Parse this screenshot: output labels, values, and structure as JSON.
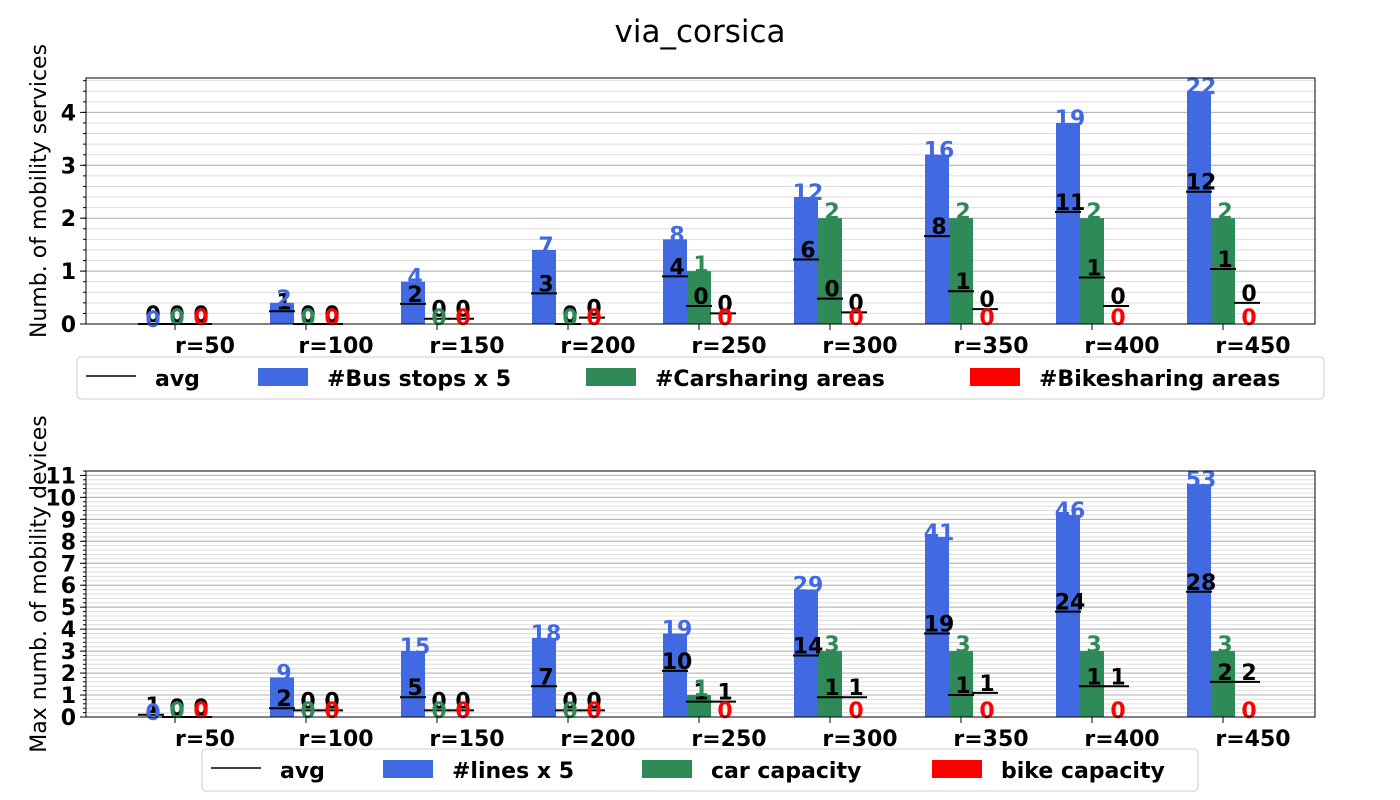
{
  "figure_title": "via_corsica",
  "colors": {
    "bus": "#4169E1",
    "car": "#2E8B57",
    "bike": "#FF0000",
    "avg": "#000000",
    "grid_major": "#b0b0b0",
    "grid_minor": "#dddddd"
  },
  "chart_data": [
    {
      "type": "bar",
      "ylabel": "Numb. of mobility services",
      "categories": [
        "r=50",
        "r=100",
        "r=150",
        "r=200",
        "r=250",
        "r=300",
        "r=350",
        "r=400",
        "r=450"
      ],
      "ylim": [
        0,
        4.65
      ],
      "yticks": [
        0,
        1,
        2,
        3,
        4
      ],
      "minor_step": 0.2,
      "grid": true,
      "legend_placement": "below",
      "legend": [
        "avg",
        "#Bus stops x 5",
        "#Carsharing areas",
        "#Bikesharing areas"
      ],
      "series": [
        {
          "name": "#Bus stops x 5",
          "color_key": "bus",
          "values": [
            0,
            0.4,
            0.8,
            1.4,
            1.6,
            2.4,
            3.2,
            3.8,
            4.4
          ],
          "labels": [
            "0",
            "2",
            "4",
            "7",
            "8",
            "12",
            "16",
            "19",
            "22"
          ]
        },
        {
          "name": "#Carsharing areas",
          "color_key": "car",
          "values": [
            0,
            0,
            0,
            0,
            1,
            2,
            2,
            2,
            2
          ],
          "labels": [
            "0",
            "0",
            "0",
            "0",
            "1",
            "2",
            "2",
            "2",
            "2"
          ]
        },
        {
          "name": "#Bikesharing areas",
          "color_key": "bike",
          "values": [
            0,
            0,
            0,
            0,
            0,
            0,
            0,
            0,
            0
          ],
          "labels": [
            "0",
            "0",
            "0",
            "0",
            "0",
            "0",
            "0",
            "0",
            "0"
          ]
        }
      ],
      "avg": [
        {
          "values": [
            0,
            0.24,
            0.38,
            0.58,
            0.9,
            1.22,
            1.66,
            2.12,
            2.5
          ],
          "labels": [
            "0",
            "1",
            "2",
            "3",
            "4",
            "6",
            "8",
            "11",
            "12"
          ]
        },
        {
          "values": [
            0,
            0,
            0.1,
            0,
            0.34,
            0.48,
            0.62,
            0.88,
            1.04
          ],
          "labels": [
            "0",
            "0",
            "0",
            "0",
            "0",
            "0",
            "1",
            "1",
            "1"
          ]
        },
        {
          "values": [
            0,
            0,
            0.1,
            0.12,
            0.2,
            0.22,
            0.28,
            0.34,
            0.4
          ],
          "labels": [
            "0",
            "0",
            "0",
            "0",
            "0",
            "0",
            "0",
            "0",
            "0"
          ]
        }
      ]
    },
    {
      "type": "bar",
      "ylabel": "Max numb. of mobility devices",
      "categories": [
        "r=50",
        "r=100",
        "r=150",
        "r=200",
        "r=250",
        "r=300",
        "r=350",
        "r=400",
        "r=450"
      ],
      "ylim": [
        0,
        11.2
      ],
      "yticks": [
        0,
        1,
        2,
        3,
        4,
        5,
        6,
        7,
        8,
        9,
        10,
        11
      ],
      "minor_step": 0.2,
      "grid": true,
      "legend_placement": "below",
      "legend": [
        "avg",
        "#lines x 5",
        "car capacity",
        "bike capacity"
      ],
      "series": [
        {
          "name": "#lines x 5",
          "color_key": "bus",
          "values": [
            0,
            1.8,
            3,
            3.6,
            3.8,
            5.8,
            8.2,
            9.2,
            10.6
          ],
          "labels": [
            "0",
            "9",
            "15",
            "18",
            "19",
            "29",
            "41",
            "46",
            "53"
          ]
        },
        {
          "name": "car capacity",
          "color_key": "car",
          "values": [
            0,
            0,
            0,
            0,
            1,
            3,
            3,
            3,
            3
          ],
          "labels": [
            "0",
            "0",
            "0",
            "0",
            "1",
            "3",
            "3",
            "3",
            "3"
          ]
        },
        {
          "name": "bike capacity",
          "color_key": "bike",
          "values": [
            0,
            0,
            0,
            0,
            0,
            0,
            0,
            0,
            0
          ],
          "labels": [
            "0",
            "0",
            "0",
            "0",
            "0",
            "0",
            "0",
            "0",
            "0"
          ]
        }
      ],
      "avg": [
        {
          "values": [
            0.1,
            0.4,
            0.9,
            1.4,
            2.1,
            2.8,
            3.8,
            4.8,
            5.7
          ],
          "labels": [
            "1",
            "2",
            "5",
            "7",
            "10",
            "14",
            "19",
            "24",
            "28"
          ]
        },
        {
          "values": [
            0,
            0.3,
            0.3,
            0.3,
            0.7,
            0.9,
            1.0,
            1.4,
            1.6
          ],
          "labels": [
            "0",
            "0",
            "0",
            "0",
            "1",
            "1",
            "1",
            "1",
            "2"
          ]
        },
        {
          "values": [
            0,
            0.3,
            0.3,
            0.3,
            0.7,
            0.9,
            1.1,
            1.4,
            1.6
          ],
          "labels": [
            "0",
            "0",
            "0",
            "0",
            "1",
            "1",
            "1",
            "1",
            "2"
          ]
        }
      ]
    }
  ]
}
